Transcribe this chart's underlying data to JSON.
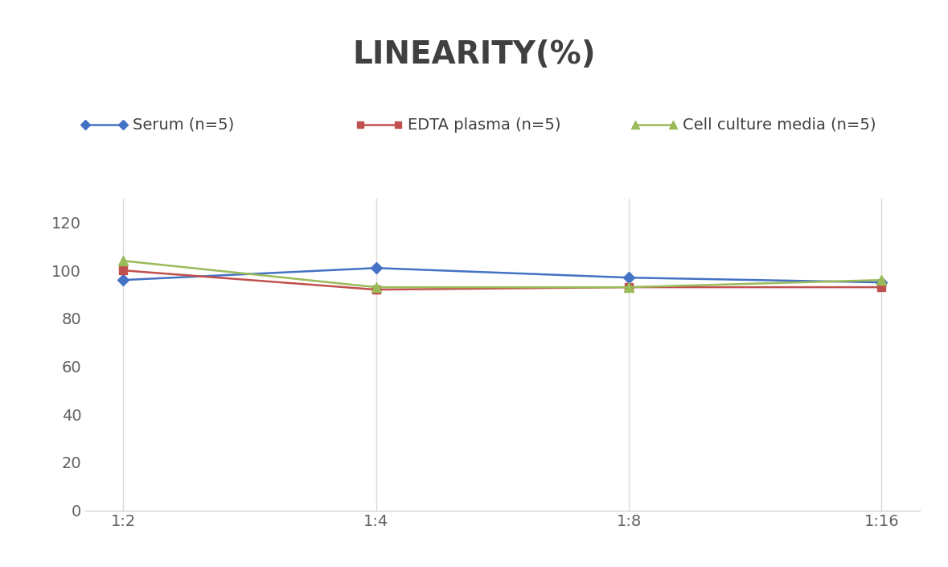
{
  "title": "LINEARITY(%)",
  "x_labels": [
    "1:2",
    "1:4",
    "1:8",
    "1:16"
  ],
  "series": [
    {
      "name": "Serum (n=5)",
      "values": [
        96,
        101,
        97,
        95
      ],
      "color": "#4472C4",
      "marker": "D",
      "marker_size": 7,
      "linewidth": 1.8
    },
    {
      "name": "EDTA plasma (n=5)",
      "values": [
        100,
        92,
        93,
        93
      ],
      "color": "#C0504D",
      "marker": "s",
      "marker_size": 7,
      "linewidth": 1.8
    },
    {
      "name": "Cell culture media (n=5)",
      "values": [
        104,
        93,
        93,
        96
      ],
      "color": "#9BBB59",
      "marker": "^",
      "marker_size": 9,
      "linewidth": 1.8
    }
  ],
  "ylim": [
    0,
    130
  ],
  "yticks": [
    0,
    20,
    40,
    60,
    80,
    100,
    120
  ],
  "title_fontsize": 28,
  "title_fontweight": "bold",
  "legend_fontsize": 14,
  "tick_fontsize": 14,
  "background_color": "#ffffff",
  "grid_color": "#d9d9d9",
  "grid_linewidth": 1,
  "title_color": "#404040",
  "tick_color": "#606060"
}
